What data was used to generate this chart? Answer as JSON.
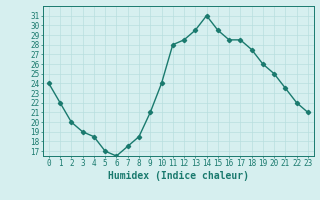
{
  "x": [
    0,
    1,
    2,
    3,
    4,
    5,
    6,
    7,
    8,
    9,
    10,
    11,
    12,
    13,
    14,
    15,
    16,
    17,
    18,
    19,
    20,
    21,
    22,
    23
  ],
  "y": [
    24,
    22,
    20,
    19,
    18.5,
    17,
    16.5,
    17.5,
    18.5,
    21,
    24,
    28,
    28.5,
    29.5,
    31,
    29.5,
    28.5,
    28.5,
    27.5,
    26,
    25,
    23.5,
    22,
    21
  ],
  "line_color": "#1a7a6e",
  "bg_color": "#d6efef",
  "grid_color": "#b8dede",
  "xlabel": "Humidex (Indice chaleur)",
  "ylabel_ticks": [
    17,
    18,
    19,
    20,
    21,
    22,
    23,
    24,
    25,
    26,
    27,
    28,
    29,
    30,
    31
  ],
  "xlim": [
    -0.5,
    23.5
  ],
  "ylim": [
    16.5,
    32.0
  ],
  "xlabel_fontsize": 7,
  "tick_fontsize": 5.5,
  "marker": "D",
  "marker_size": 2.2,
  "linewidth": 1.0
}
